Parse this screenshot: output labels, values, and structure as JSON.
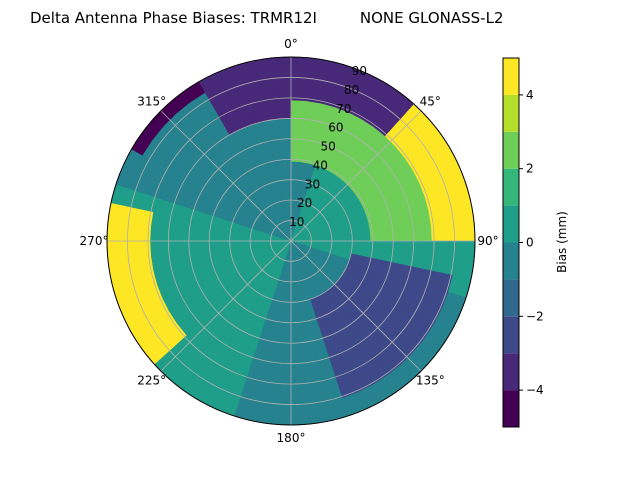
{
  "chart_data": {
    "type": "heatmap",
    "projection": "polar",
    "title": "Delta Antenna Phase Biases: TRMR12I         NONE GLONASS-L2",
    "theta_direction": "clockwise",
    "theta_zero": "top",
    "angle_ticks": [
      {
        "deg": 0,
        "label": "0°"
      },
      {
        "deg": 45,
        "label": "45°"
      },
      {
        "deg": 90,
        "label": "90°"
      },
      {
        "deg": 135,
        "label": "135°"
      },
      {
        "deg": 180,
        "label": "180°"
      },
      {
        "deg": 225,
        "label": "225°"
      },
      {
        "deg": 270,
        "label": "270°"
      },
      {
        "deg": 315,
        "label": "315°"
      }
    ],
    "radial_ticks": [
      10,
      20,
      30,
      40,
      50,
      60,
      70,
      80,
      90
    ],
    "radial_range": [
      0,
      90
    ],
    "colorbar": {
      "label": "Bias (mm)",
      "range": [
        -5,
        5
      ],
      "levels": [
        -5,
        -4,
        -3,
        -2,
        -1,
        0,
        1,
        2,
        3,
        4,
        5
      ],
      "ticks": [
        -4,
        -2,
        0,
        2,
        4
      ],
      "tick_labels": [
        "−4",
        "−2",
        "0",
        "2",
        "4"
      ],
      "colors": [
        "#440154",
        "#482878",
        "#3e4989",
        "#31688e",
        "#26828e",
        "#1f9e89",
        "#35b779",
        "#6ece58",
        "#b5de2b",
        "#fde725"
      ]
    },
    "regions": [
      {
        "azimuth_range": [
          330,
          60
        ],
        "elevation_range": [
          60,
          90
        ],
        "bias_range": [
          -5,
          -3
        ]
      },
      {
        "azimuth_range": [
          0,
          90
        ],
        "elevation_range": [
          40,
          70
        ],
        "bias_range": [
          1,
          3
        ]
      },
      {
        "azimuth_range": [
          40,
          90
        ],
        "elevation_range": [
          70,
          90
        ],
        "bias_range": [
          3,
          5
        ]
      },
      {
        "azimuth_range": [
          100,
          160
        ],
        "elevation_range": [
          30,
          80
        ],
        "bias_range": [
          -4,
          -2
        ]
      },
      {
        "azimuth_range": [
          230,
          280
        ],
        "elevation_range": [
          70,
          90
        ],
        "bias_range": [
          3,
          5
        ]
      },
      {
        "azimuth_range": [
          300,
          330
        ],
        "elevation_range": [
          85,
          90
        ],
        "bias_range": [
          -5,
          -4
        ]
      }
    ],
    "grid": true,
    "legend": "colorbar-right"
  }
}
